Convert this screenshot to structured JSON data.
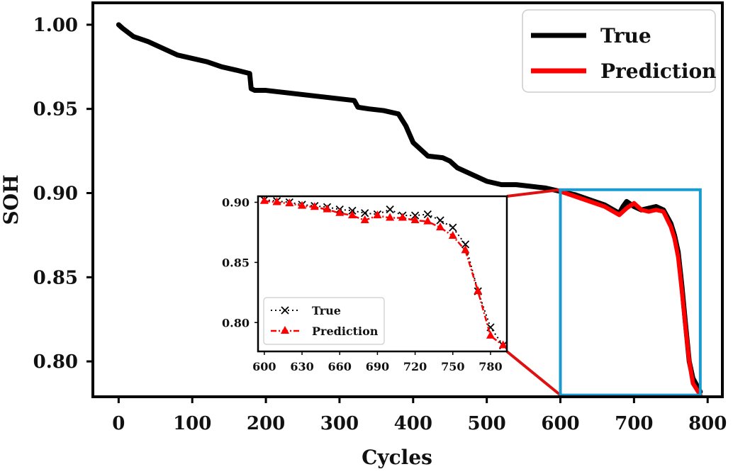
{
  "chart_data": {
    "type": "line",
    "xlabel": "Cycles",
    "ylabel": "SOH",
    "xlim": [
      -35,
      820
    ],
    "ylim": [
      0.779,
      1.013
    ],
    "xticks": [
      0,
      100,
      200,
      300,
      400,
      500,
      600,
      700,
      800
    ],
    "yticks": [
      0.8,
      0.85,
      0.9,
      0.95,
      1.0
    ],
    "ytick_labels": [
      "0.80",
      "0.85",
      "0.90",
      "0.95",
      "1.00"
    ],
    "legend": {
      "placement": "top-right",
      "entries": [
        "True",
        "Prediction"
      ]
    },
    "series": [
      {
        "name": "True",
        "color": "#000000",
        "x": [
          0,
          5,
          20,
          40,
          60,
          80,
          100,
          120,
          140,
          160,
          178,
          180,
          185,
          200,
          220,
          240,
          260,
          280,
          300,
          320,
          325,
          340,
          360,
          380,
          390,
          400,
          410,
          420,
          440,
          450,
          460,
          480,
          490,
          500,
          510,
          520,
          540,
          560,
          580,
          600,
          620,
          640,
          660,
          680,
          685,
          690,
          700,
          710,
          720,
          730,
          740,
          750,
          755,
          760,
          765,
          770,
          775,
          780,
          790
        ],
        "y": [
          1.0,
          0.998,
          0.993,
          0.99,
          0.986,
          0.982,
          0.98,
          0.978,
          0.975,
          0.973,
          0.971,
          0.962,
          0.961,
          0.961,
          0.96,
          0.959,
          0.958,
          0.957,
          0.956,
          0.955,
          0.951,
          0.95,
          0.949,
          0.947,
          0.94,
          0.93,
          0.926,
          0.922,
          0.921,
          0.919,
          0.915,
          0.911,
          0.909,
          0.907,
          0.906,
          0.905,
          0.905,
          0.904,
          0.903,
          0.901,
          0.899,
          0.896,
          0.893,
          0.888,
          0.892,
          0.895,
          0.892,
          0.89,
          0.891,
          0.892,
          0.89,
          0.882,
          0.875,
          0.865,
          0.845,
          0.822,
          0.8,
          0.79,
          0.782
        ]
      },
      {
        "name": "Prediction",
        "color": "#ff0000",
        "x": [
          600,
          620,
          640,
          660,
          680,
          690,
          700,
          710,
          720,
          730,
          740,
          750,
          755,
          760,
          765,
          770,
          775,
          780,
          790
        ],
        "y": [
          0.901,
          0.898,
          0.895,
          0.892,
          0.887,
          0.891,
          0.894,
          0.89,
          0.889,
          0.89,
          0.889,
          0.88,
          0.873,
          0.862,
          0.842,
          0.82,
          0.8,
          0.787,
          0.78
        ]
      }
    ],
    "zoom_box": {
      "x_range": [
        600,
        790
      ],
      "y_range": [
        0.78,
        0.902
      ],
      "color": "#1a9bd0"
    },
    "inset": {
      "xlim": [
        595,
        793
      ],
      "ylim": [
        0.776,
        0.905
      ],
      "xticks": [
        600,
        630,
        660,
        690,
        720,
        750,
        780
      ],
      "yticks": [
        0.8,
        0.85,
        0.9
      ],
      "ytick_labels": [
        "0.80",
        "0.85",
        "0.90"
      ],
      "legend": {
        "placement": "bottom-left",
        "entries": [
          "True",
          "Prediction"
        ]
      },
      "series": [
        {
          "name": "True",
          "color": "#000000",
          "x": [
            600,
            610,
            620,
            630,
            640,
            650,
            660,
            670,
            680,
            690,
            700,
            710,
            720,
            730,
            740,
            750,
            760,
            770,
            780,
            790
          ],
          "y": [
            0.902,
            0.901,
            0.9,
            0.898,
            0.897,
            0.896,
            0.894,
            0.893,
            0.891,
            0.89,
            0.894,
            0.889,
            0.889,
            0.89,
            0.885,
            0.879,
            0.865,
            0.826,
            0.796,
            0.781
          ]
        },
        {
          "name": "Prediction",
          "color": "#ff0000",
          "x": [
            600,
            610,
            620,
            630,
            640,
            650,
            660,
            670,
            680,
            690,
            700,
            710,
            720,
            730,
            740,
            750,
            760,
            770,
            780,
            790
          ],
          "y": [
            0.901,
            0.9,
            0.899,
            0.897,
            0.896,
            0.894,
            0.891,
            0.889,
            0.885,
            0.889,
            0.887,
            0.887,
            0.885,
            0.884,
            0.879,
            0.872,
            0.86,
            0.826,
            0.789,
            0.781
          ]
        }
      ]
    }
  }
}
